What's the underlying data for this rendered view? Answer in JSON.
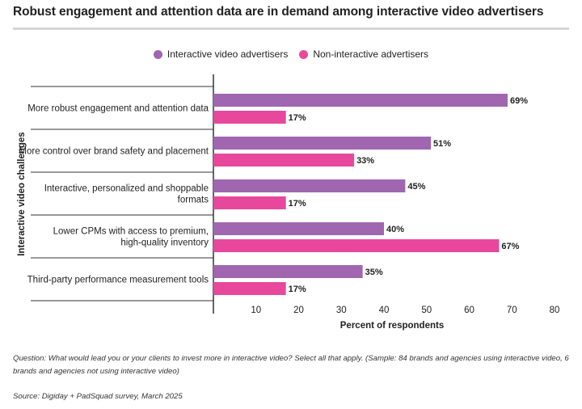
{
  "title": "Robust engagement and attention data are in demand among interactive video advertisers",
  "footnote": "Question: What would lead you or your clients to invest more in interactive video? Select all that apply. (Sample: 84 brands and agencies using interactive video, 6 brands and agencies not using interactive video)",
  "source": "Source: Digiday + PadSquad survey, March 2025",
  "colors": {
    "interactive": "#a066b0",
    "non_interactive": "#e8489c"
  },
  "chart_data": {
    "type": "bar",
    "orientation": "horizontal",
    "title": "Robust engagement and attention data are in demand among interactive video advertisers",
    "xlabel": "Percent of respondents",
    "ylabel": "Interactive video challenges",
    "xlim": [
      0,
      80
    ],
    "xticks": [
      10,
      20,
      30,
      40,
      50,
      60,
      70,
      80
    ],
    "legend_position": "top-center",
    "grid": false,
    "categories": [
      [
        "More robust engagement and attention data"
      ],
      [
        "More control over brand safety and placement"
      ],
      [
        "Interactive, personalized and shoppable",
        "formats"
      ],
      [
        "Lower CPMs with access to premium,",
        "high-quality inventory"
      ],
      [
        "Third-party performance measurement tools"
      ]
    ],
    "series": [
      {
        "name": "Interactive video advertisers",
        "color": "#a066b0",
        "values": [
          69,
          51,
          45,
          40,
          35
        ],
        "labels": [
          "69%",
          "51%",
          "45%",
          "40%",
          "35%"
        ]
      },
      {
        "name": "Non-interactive advertisers",
        "color": "#e8489c",
        "values": [
          17,
          33,
          17,
          67,
          17
        ],
        "labels": [
          "17%",
          "33%",
          "17%",
          "67%",
          "17%"
        ]
      }
    ]
  }
}
